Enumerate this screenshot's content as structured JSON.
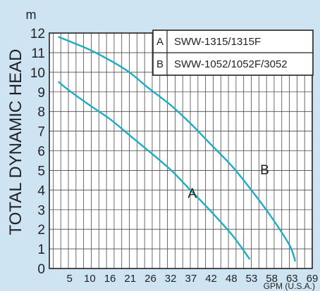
{
  "chart_data": {
    "type": "line",
    "title": "",
    "xlabel": "GPM (U.S.A.)",
    "ylabel": "TOTAL DYNAMIC HEAD",
    "yunit": "m",
    "xlim": [
      0,
      69
    ],
    "ylim": [
      0,
      12
    ],
    "x_ticks": [
      "5",
      "10",
      "16",
      "21",
      "26",
      "32",
      "37",
      "42",
      "48",
      "53",
      "58",
      "63",
      "69"
    ],
    "y_ticks": [
      "0",
      "1",
      "2",
      "3",
      "4",
      "5",
      "6",
      "7",
      "8",
      "9",
      "10",
      "11",
      "12"
    ],
    "grid": true,
    "legend_position": "top-right",
    "legend": [
      {
        "key": "A",
        "label": "SWW-1315/1315F"
      },
      {
        "key": "B",
        "label": "SWW-1052/1052F/3052"
      }
    ],
    "series": [
      {
        "name": "A",
        "color": "#1aaec4",
        "x": [
          2.5,
          5,
          10,
          16,
          21,
          26,
          32,
          37,
          42,
          48,
          52.5
        ],
        "y": [
          9.5,
          9.1,
          8.4,
          7.6,
          6.8,
          6.0,
          5.0,
          4.0,
          3.0,
          1.7,
          0.5
        ]
      },
      {
        "name": "B",
        "color": "#1aaec4",
        "x": [
          2.5,
          5,
          10,
          16,
          21,
          26,
          32,
          37,
          42,
          48,
          53,
          58,
          63,
          64.5
        ],
        "y": [
          11.8,
          11.6,
          11.2,
          10.6,
          10.0,
          9.2,
          8.3,
          7.4,
          6.4,
          5.2,
          4.0,
          2.7,
          1.2,
          0.4
        ]
      }
    ],
    "annotations": [
      {
        "text": "A",
        "x": 37.5,
        "y": 3.6
      },
      {
        "text": "B",
        "x": 56.5,
        "y": 4.8
      }
    ]
  }
}
